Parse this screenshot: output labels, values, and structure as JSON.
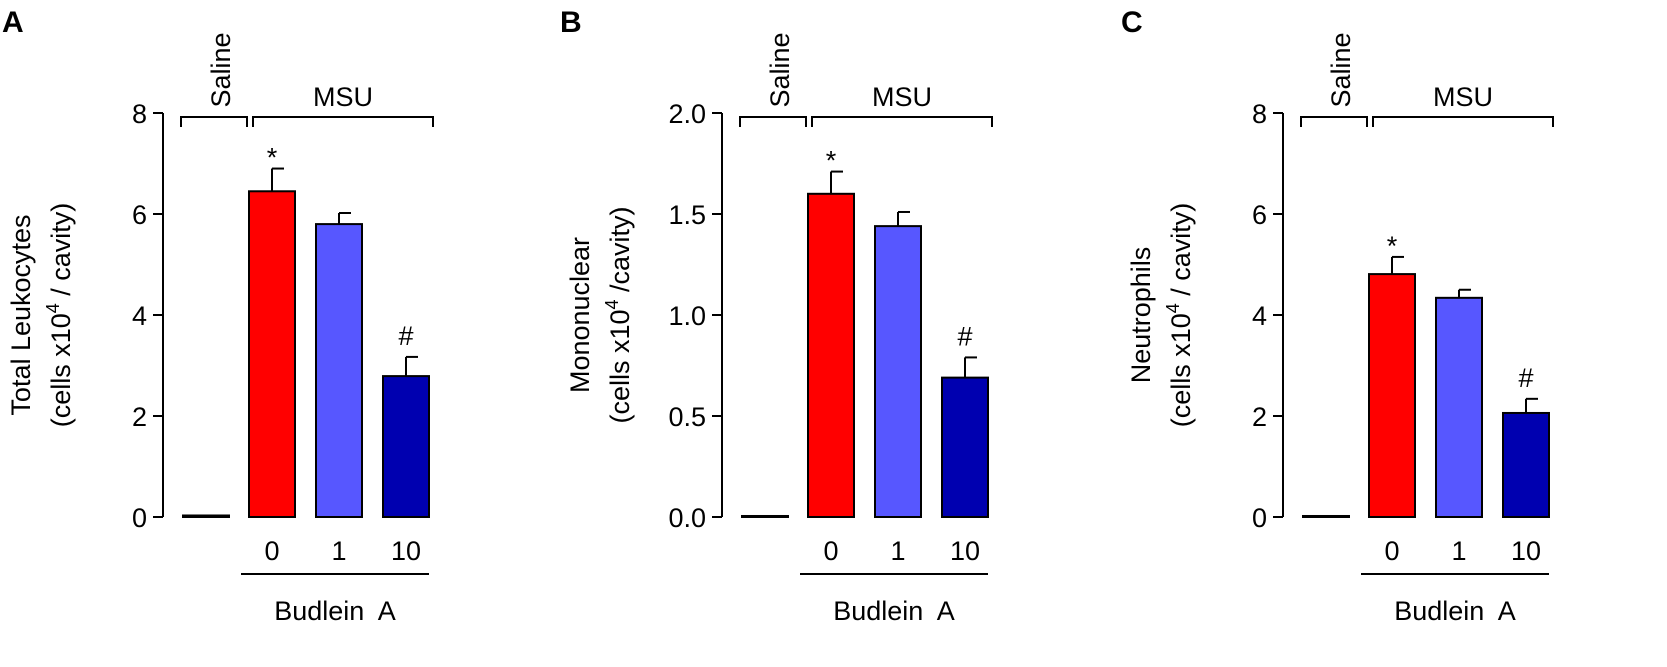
{
  "chart_data": [
    {
      "type": "bar",
      "panel_label": "A",
      "ylabel_line1": "Total Leukocytes",
      "ylabel_line2": {
        "before": "(cells x10",
        "sup": "4",
        "after": " / cavity)"
      },
      "categories": [
        null,
        "0",
        "1",
        "10"
      ],
      "values": [
        0.03,
        6.45,
        5.8,
        2.79
      ],
      "errors": [
        null,
        0.45,
        0.22,
        0.38
      ],
      "colors": [
        "#ffffff",
        "#ff0000",
        "#5757ff",
        "#0000b0"
      ],
      "significance": [
        null,
        "*",
        null,
        "#"
      ],
      "saline_label": "Saline",
      "msu_label": "MSU",
      "xlabel": "Budlein  A",
      "ylim": [
        0,
        8
      ],
      "yticks": [
        0,
        2,
        4,
        6,
        8
      ]
    },
    {
      "type": "bar",
      "panel_label": "B",
      "ylabel_line1": "Mononuclear",
      "ylabel_line2": {
        "before": "(cells x10",
        "sup": "4",
        "after": " /cavity)"
      },
      "categories": [
        null,
        "0",
        "1",
        "10"
      ],
      "values": [
        0.005,
        1.6,
        1.44,
        0.69
      ],
      "errors": [
        null,
        0.11,
        0.07,
        0.1
      ],
      "colors": [
        "#ffffff",
        "#ff0000",
        "#5757ff",
        "#0000b0"
      ],
      "significance": [
        null,
        "*",
        null,
        "#"
      ],
      "saline_label": "Saline",
      "msu_label": "MSU",
      "xlabel": "Budlein  A",
      "ylim": [
        0,
        2
      ],
      "yticks": [
        {
          "value": 0,
          "label": "0.0"
        },
        0.5,
        {
          "value": 1,
          "label": "1.0"
        },
        1.5,
        {
          "value": 2,
          "label": "2.0"
        }
      ]
    },
    {
      "type": "bar",
      "panel_label": "C",
      "ylabel_line1": "Neutrophils",
      "ylabel_line2": {
        "before": "(cells x10",
        "sup": "4",
        "after": " / cavity)"
      },
      "categories": [
        null,
        "0",
        "1",
        "10"
      ],
      "values": [
        0.02,
        4.81,
        4.34,
        2.06
      ],
      "errors": [
        null,
        0.34,
        0.16,
        0.28
      ],
      "colors": [
        "#ffffff",
        "#ff0000",
        "#5757ff",
        "#0000b0"
      ],
      "significance": [
        null,
        "*",
        null,
        "#"
      ],
      "saline_label": "Saline",
      "msu_label": "MSU",
      "xlabel": "Budlein  A",
      "ylim": [
        0,
        8
      ],
      "yticks": [
        0,
        2,
        4,
        6,
        8
      ]
    }
  ]
}
